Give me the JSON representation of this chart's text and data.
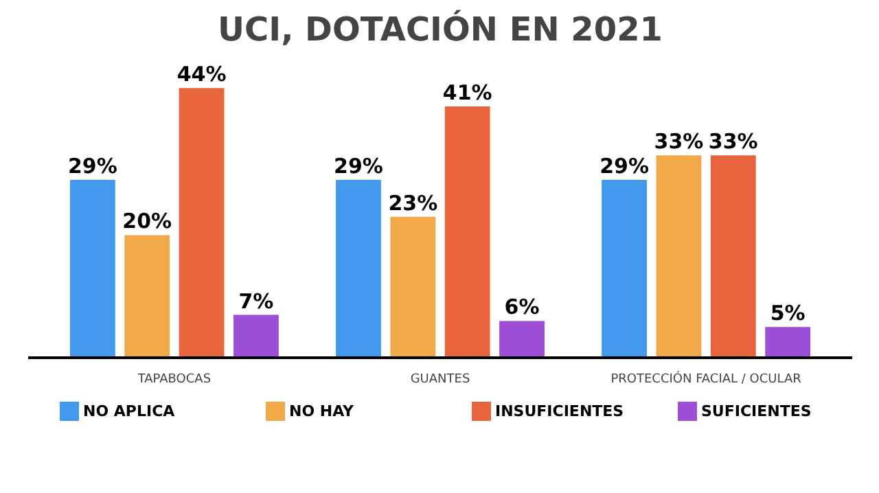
{
  "chart_data": {
    "type": "bar",
    "title": "UCI, DOTACIÓN EN 2021",
    "categories": [
      "TAPABOCAS",
      "GUANTES",
      "PROTECCIÓN FACIAL / OCULAR"
    ],
    "series": [
      {
        "name": "NO APLICA",
        "color": "#4299ee",
        "values": [
          29,
          29,
          29
        ],
        "value_labels": [
          "29%",
          "29%",
          "29%"
        ]
      },
      {
        "name": "NO HAY",
        "color": "#f0a848",
        "values": [
          20,
          23,
          33
        ],
        "value_labels": [
          "20%",
          "23%",
          "33%"
        ]
      },
      {
        "name": "INSUFICIENTES",
        "color": "#e8643c",
        "values": [
          44,
          41,
          33
        ],
        "value_labels": [
          "44%",
          "41%",
          "33%"
        ]
      },
      {
        "name": "SUFICIENTES",
        "color": "#9c4fd6",
        "values": [
          7,
          6,
          5
        ],
        "value_labels": [
          "7%",
          "6%",
          "5%"
        ]
      }
    ],
    "legend": "bottom"
  }
}
